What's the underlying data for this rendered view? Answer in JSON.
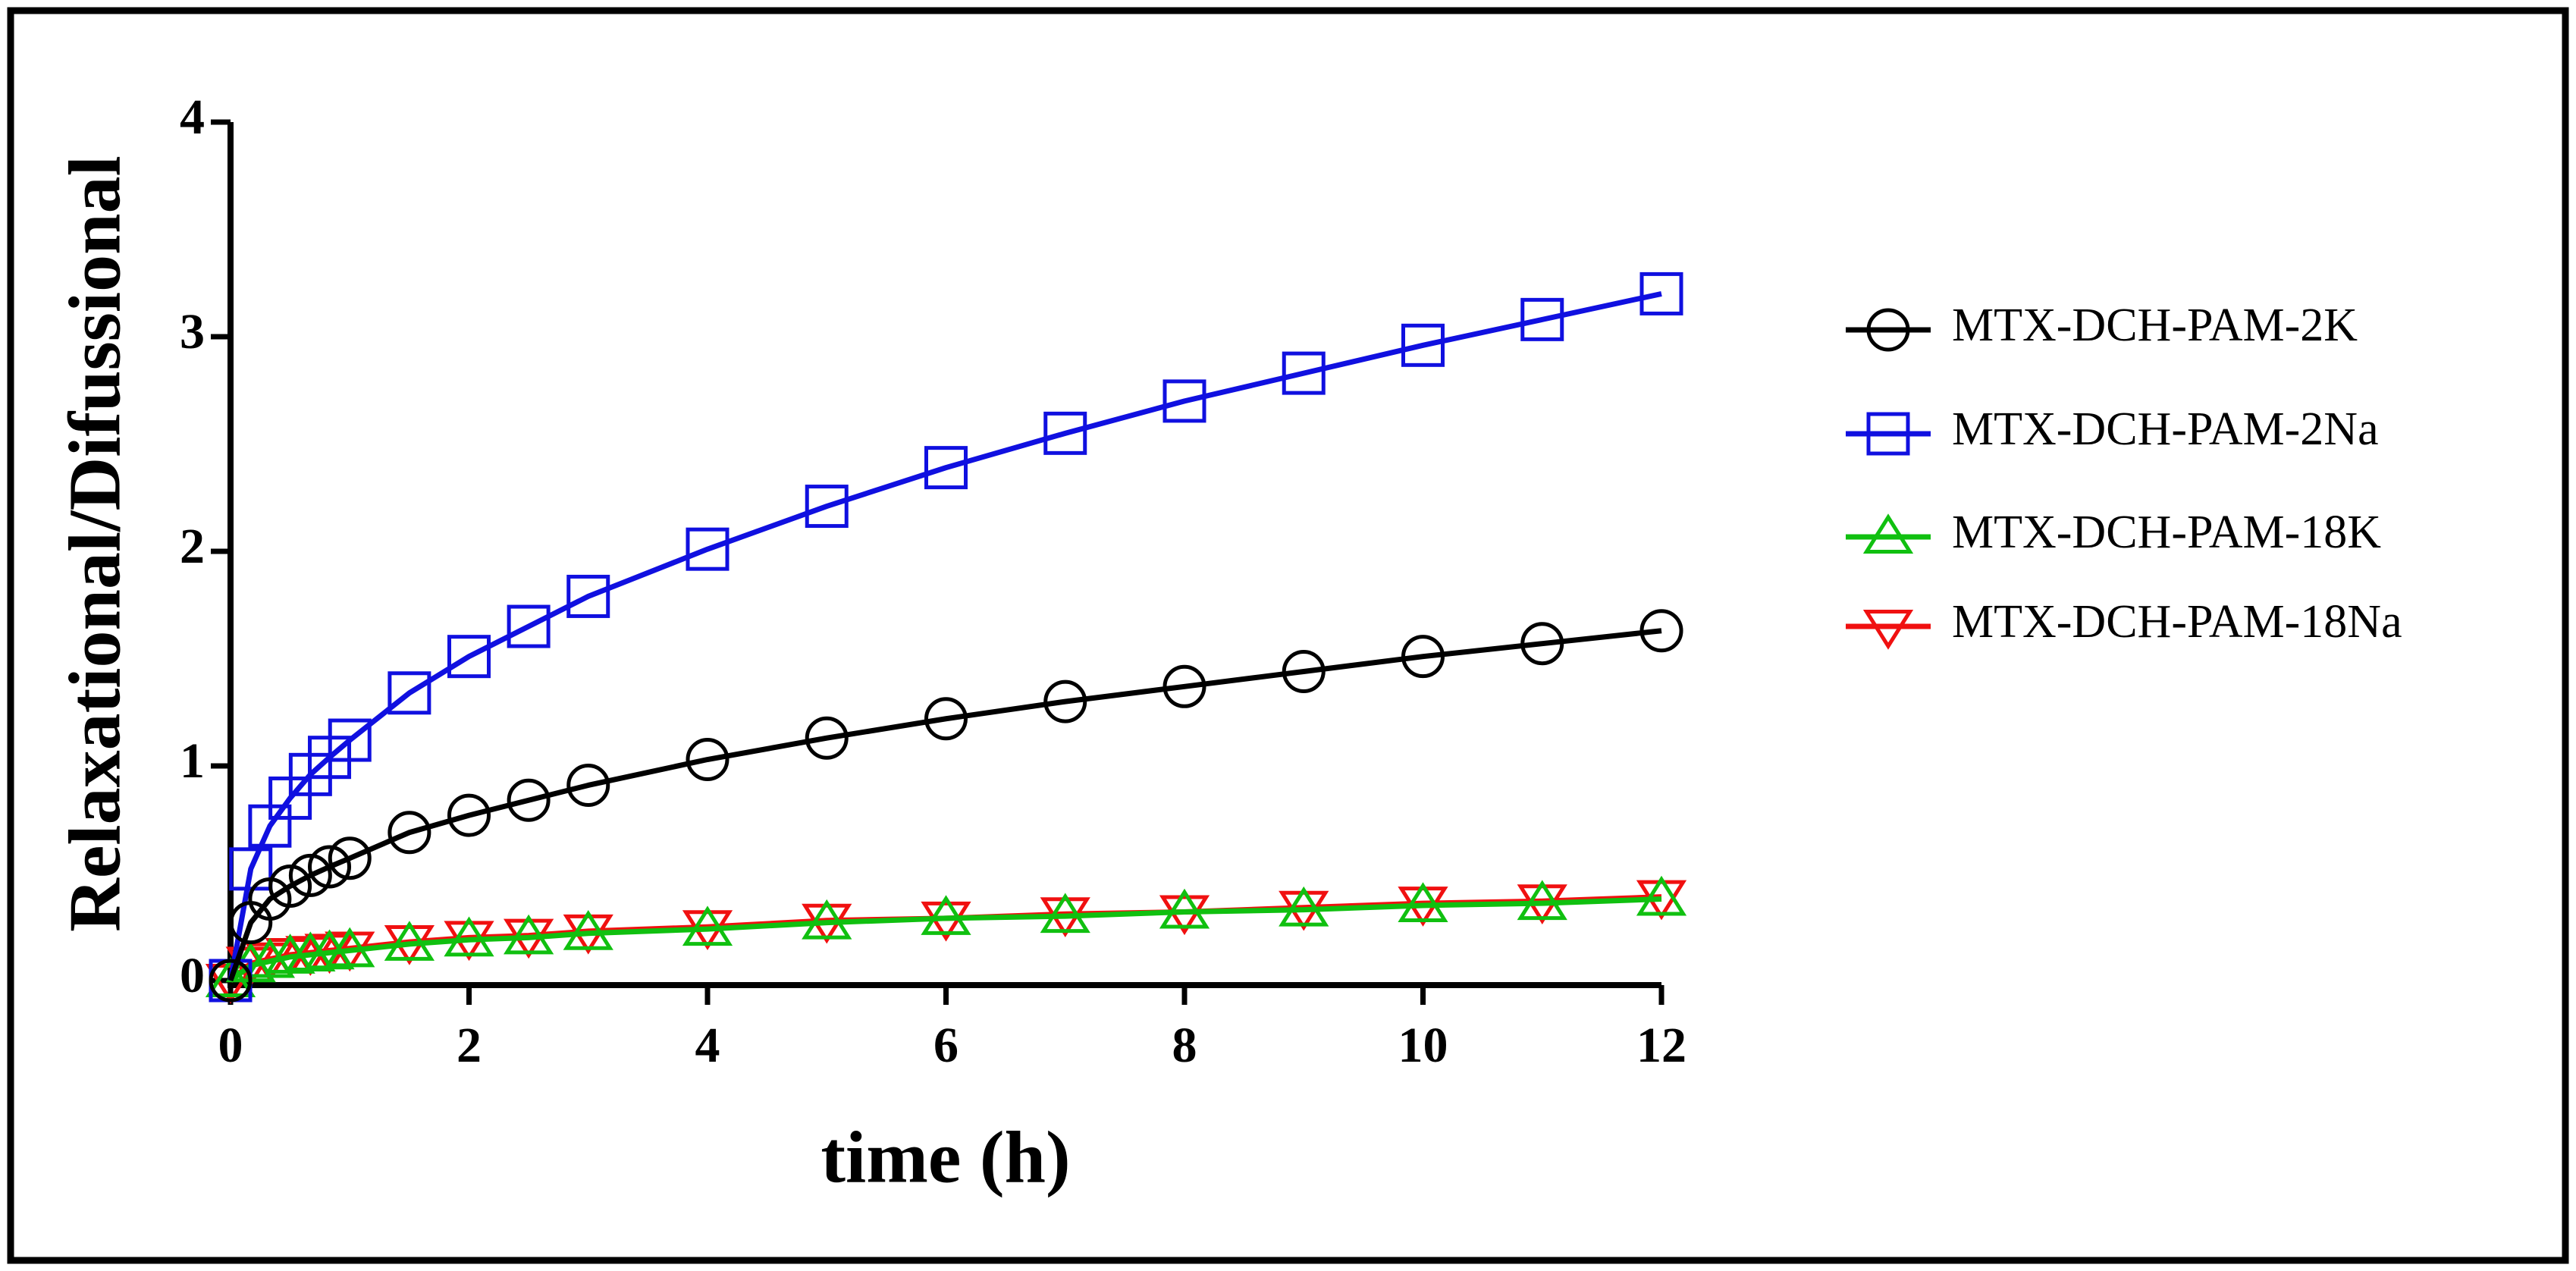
{
  "chart_data": {
    "type": "line",
    "x_label": "time (h)",
    "y_label": "Relaxational/Difussional",
    "x": [
      0,
      0.17,
      0.33,
      0.5,
      0.67,
      0.83,
      1,
      1.5,
      2,
      2.5,
      3,
      4,
      5,
      6,
      7,
      8,
      9,
      10,
      11,
      12
    ],
    "series": [
      {
        "name": "MTX-DCH-PAM-2K",
        "color": "#000000",
        "marker": "circle",
        "values": [
          0,
          0.27,
          0.38,
          0.44,
          0.49,
          0.53,
          0.57,
          0.69,
          0.77,
          0.84,
          0.91,
          1.03,
          1.13,
          1.22,
          1.3,
          1.37,
          1.44,
          1.51,
          1.57,
          1.63
        ]
      },
      {
        "name": "MTX-DCH-PAM-2Na",
        "color": "#1010e0",
        "marker": "square",
        "values": [
          0,
          0.52,
          0.72,
          0.85,
          0.96,
          1.04,
          1.12,
          1.34,
          1.51,
          1.65,
          1.79,
          2.01,
          2.21,
          2.39,
          2.55,
          2.7,
          2.83,
          2.96,
          3.08,
          3.2
        ]
      },
      {
        "name": "MTX-DCH-PAM-18K",
        "color": "#10c010",
        "marker": "triangle-up",
        "values": [
          0,
          0.07,
          0.09,
          0.11,
          0.12,
          0.13,
          0.14,
          0.17,
          0.19,
          0.2,
          0.22,
          0.24,
          0.27,
          0.29,
          0.3,
          0.32,
          0.33,
          0.35,
          0.36,
          0.38
        ]
      },
      {
        "name": "MTX-DCH-PAM-18Na",
        "color": "#f01010",
        "marker": "triangle-down",
        "values": [
          0,
          0.08,
          0.1,
          0.12,
          0.13,
          0.14,
          0.15,
          0.18,
          0.2,
          0.21,
          0.23,
          0.25,
          0.28,
          0.29,
          0.31,
          0.32,
          0.34,
          0.36,
          0.37,
          0.39
        ]
      }
    ],
    "xlim": [
      0,
      12
    ],
    "xticks": [
      0,
      2,
      4,
      6,
      8,
      10,
      12
    ],
    "ylim": [
      0,
      4
    ],
    "yticks": [
      0,
      1,
      2,
      3,
      4
    ],
    "grid": false,
    "legend": "right"
  }
}
